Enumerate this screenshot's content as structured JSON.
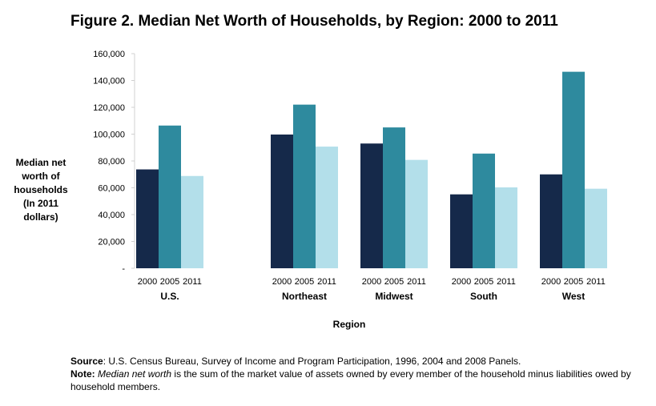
{
  "title": "Figure 2. Median Net Worth of Households, by Region: 2000 to 2011",
  "ylabel_lines": [
    "Median net",
    "worth  of",
    "households",
    "(In 2011",
    "dollars)"
  ],
  "source_label": "Source",
  "source_text": ": U.S. Census Bureau, Survey of Income and Program Participation, 1996, 2004 and 2008 Panels.",
  "note_label": "Note:",
  "note_em": "Median net worth",
  "note_text": " is the sum of the market value of assets owned by every member of the household minus liabilities owed by household members.",
  "colors": {
    "y2000": "#15294a",
    "y2005": "#2e8a9e",
    "y2011": "#b3dfea"
  },
  "chart_data": {
    "type": "bar",
    "xlabel": "Region",
    "ylabel": "Median net worth of households (In 2011 dollars)",
    "ylim": [
      0,
      160000
    ],
    "yticks": [
      "-",
      "20,000",
      "40,000",
      "60,000",
      "80,000",
      "100,000",
      "120,000",
      "140,000",
      "160,000"
    ],
    "categories": [
      "U.S.",
      "Northeast",
      "Midwest",
      "South",
      "West"
    ],
    "series": [
      {
        "name": "2000",
        "values": [
          73700,
          99700,
          93000,
          55100,
          70000
        ]
      },
      {
        "name": "2005",
        "values": [
          106400,
          122000,
          105000,
          85500,
          146500
        ]
      },
      {
        "name": "2011",
        "values": [
          68800,
          90700,
          80800,
          60300,
          59300
        ]
      }
    ],
    "grid": false,
    "legend": "none"
  }
}
